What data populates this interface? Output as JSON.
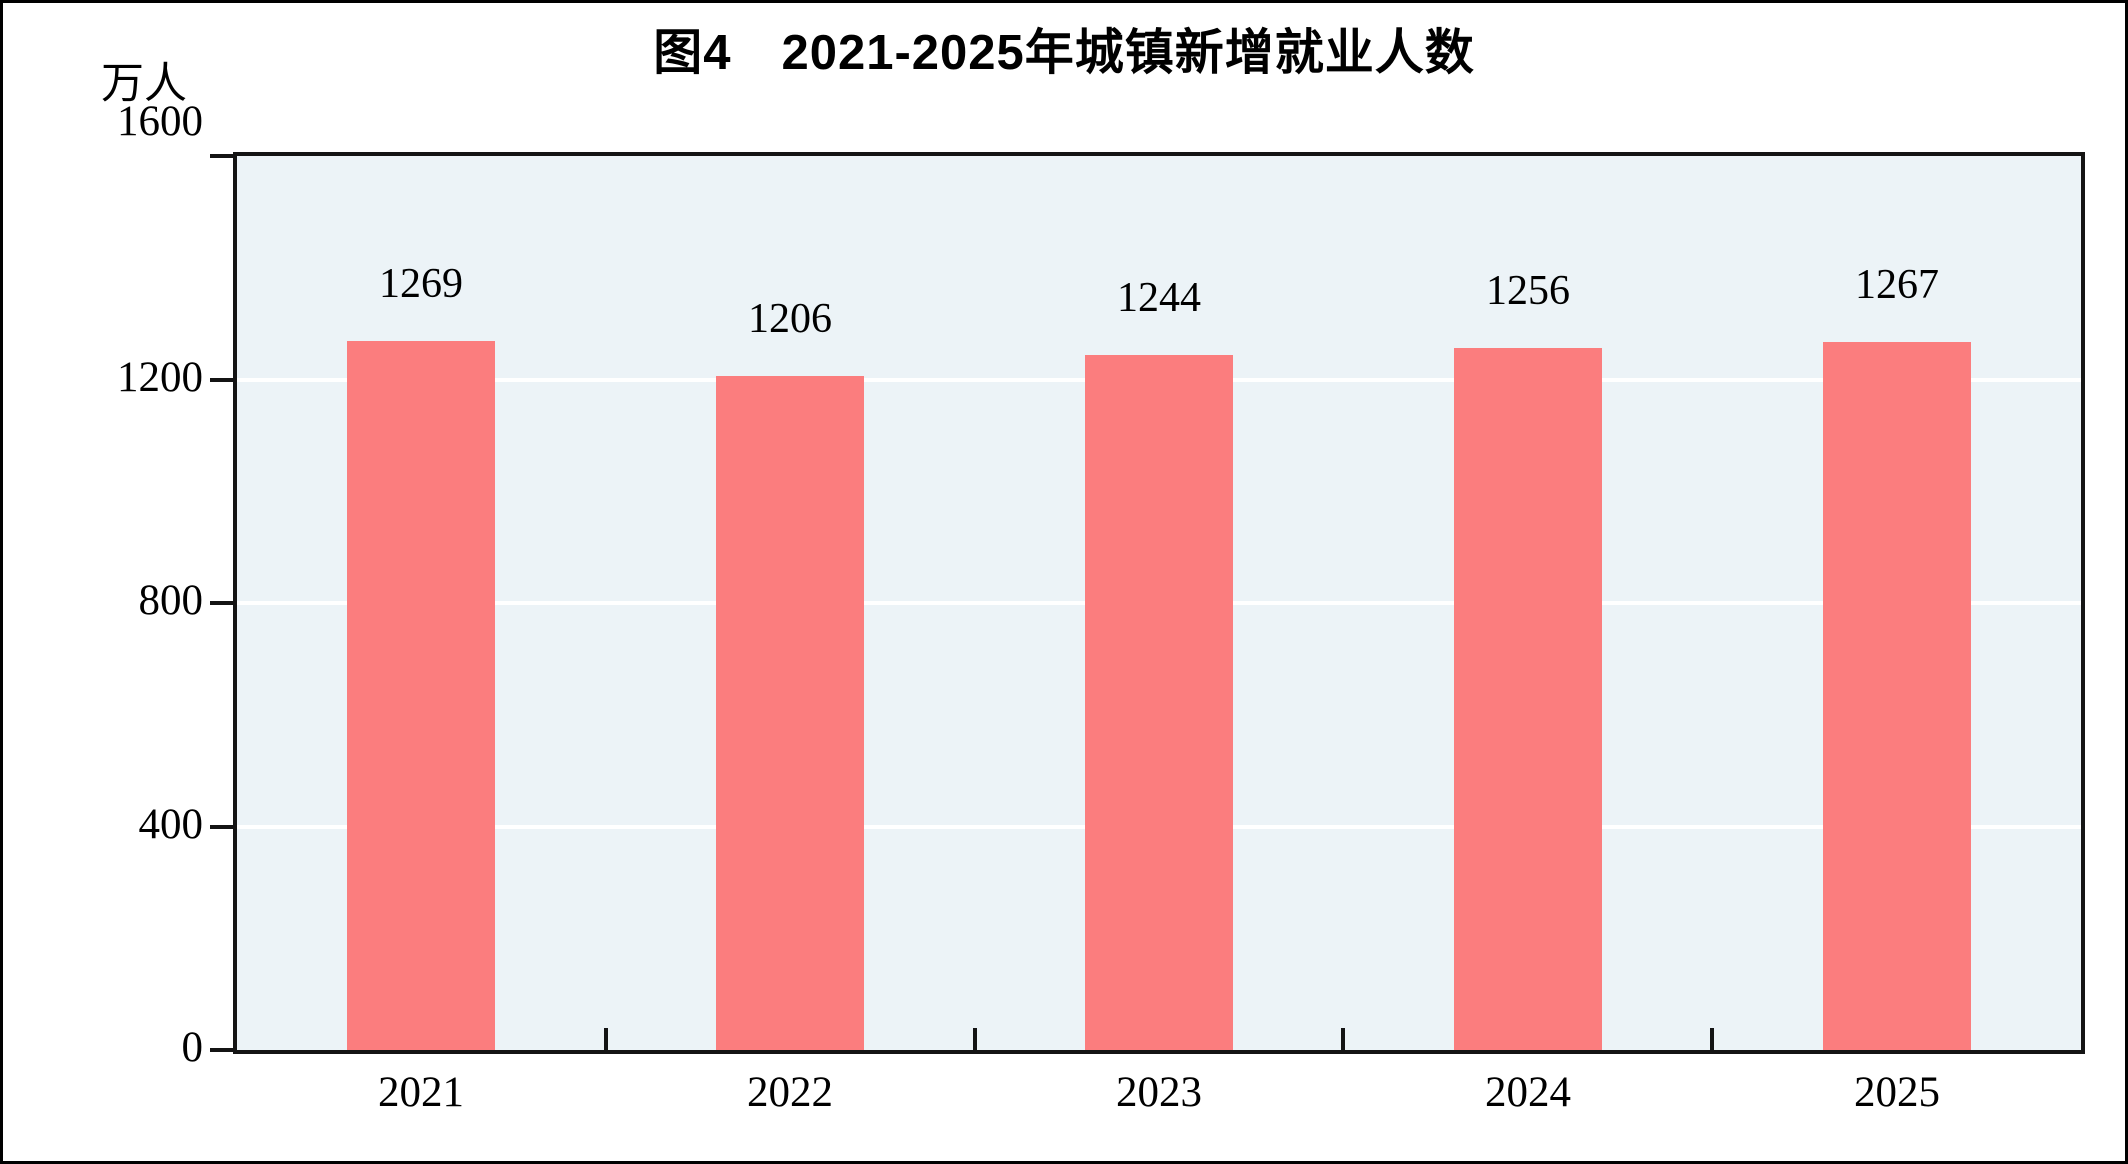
{
  "chart_data": {
    "type": "bar",
    "title": "图4　2021-2025年城镇新增就业人数",
    "unit_label": "万人",
    "categories": [
      "2021",
      "2022",
      "2023",
      "2024",
      "2025"
    ],
    "values": [
      1269,
      1206,
      1244,
      1256,
      1267
    ],
    "value_labels": [
      "1269",
      "1206",
      "1244",
      "1256",
      "1267"
    ],
    "xlabel": "",
    "ylabel": "万人",
    "ylim": [
      0,
      1600
    ],
    "yticks": [
      0,
      400,
      800,
      1200,
      1600
    ],
    "grid": "horizontal-white-lines-at-400-800-1200",
    "legend": "none",
    "bar_width_fraction": 0.4,
    "colors": {
      "bar": "#FB7D7E",
      "plot_background": "#ECF3F7",
      "gridline": "#FFFFFF",
      "axis": "#141414",
      "text": "#000000"
    }
  }
}
